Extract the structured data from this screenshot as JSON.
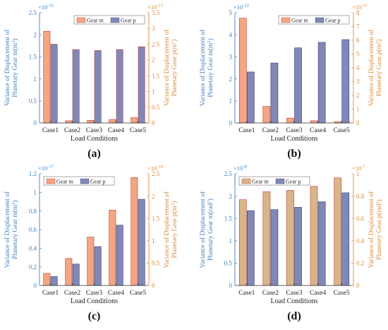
{
  "colors": {
    "gear_m_bar": "#f4a582",
    "gear_m_bar_d": "#d8b58a",
    "gear_p_bar": "#8088b8",
    "left_axis": "#3d7fbf",
    "right_axis": "#d98a3a",
    "outline": "#c0392b",
    "outline_p": "#3a3a6a"
  },
  "chart_data": [
    {
      "panel": "(a)",
      "type": "bar",
      "categories": [
        "Case1",
        "Case2",
        "Case3",
        "Case4",
        "Case5"
      ],
      "xlabel": "Load Conditions",
      "ylabel_left": "Variance of Displacement of Planetary Gear m(m²)",
      "ylabel_right": "Variance of Displacement of Planetary Gear p(m²)",
      "ylabel_left_l1": "Variance of Displacement of",
      "ylabel_left_l2": "Planetary Gear m(m",
      "ylabel_right_l1": "Variance of Displacement of",
      "ylabel_right_l2": "Planetary Gear p(m",
      "left_exp": "×10",
      "left_exp_pow": "-32",
      "right_exp": "×10",
      "right_exp_pow": "-13",
      "ylim_left": [
        0,
        2.5
      ],
      "ylim_right": [
        0,
        3.5
      ],
      "left_ticks": [
        "0",
        "0.5",
        "1",
        "1.5",
        "2",
        "2.5"
      ],
      "right_ticks": [
        "0",
        "0.5",
        "1",
        "1.5",
        "2",
        "2.5",
        "3",
        "3.5"
      ],
      "legend": [
        "Gear m",
        "Gear p"
      ],
      "legend_position": "top-right",
      "series": [
        {
          "name": "Gear m",
          "axis": "left",
          "values": [
            2.08,
            0.05,
            0.06,
            0.08,
            0.12
          ]
        },
        {
          "name": "Gear p",
          "axis": "right",
          "values": [
            2.5,
            2.33,
            2.3,
            2.33,
            2.42
          ]
        }
      ]
    },
    {
      "panel": "(b)",
      "type": "bar",
      "categories": [
        "Case1",
        "Case2",
        "Case3",
        "Case4",
        "Case5"
      ],
      "xlabel": "Load Conditions",
      "ylabel_left": "Variance of Displacement of Planetary Gear m(m²)",
      "ylabel_right": "Variance of Displacement of Planetary Gear p(m²)",
      "ylabel_left_l1": "Variance of Displacement of",
      "ylabel_left_l2": "Planetary Gear m(m",
      "ylabel_right_l1": "Variance of Displacement of",
      "ylabel_right_l2": "Planetary Gear p(m",
      "left_exp": "×10",
      "left_exp_pow": "-22",
      "right_exp": "×10",
      "right_exp_pow": "-11",
      "ylim_left": [
        0,
        5
      ],
      "ylim_right": [
        0,
        8
      ],
      "left_ticks": [
        "0",
        "1",
        "2",
        "3",
        "4",
        "5"
      ],
      "right_ticks": [
        "0",
        "1",
        "2",
        "3",
        "4",
        "5",
        "6",
        "7",
        "8"
      ],
      "legend": [
        "Gear m",
        "Gear p"
      ],
      "legend_position": "top-right",
      "series": [
        {
          "name": "Gear m",
          "axis": "left",
          "values": [
            4.75,
            0.75,
            0.22,
            0.1,
            0.05
          ]
        },
        {
          "name": "Gear p",
          "axis": "right",
          "values": [
            3.7,
            4.35,
            5.45,
            5.85,
            6.05
          ]
        }
      ]
    },
    {
      "panel": "(c)",
      "type": "bar",
      "categories": [
        "Case1",
        "Case2",
        "Case3",
        "Case4",
        "Case5"
      ],
      "xlabel": "Load Conditions",
      "ylabel_left": "Variance of Displacement of Planetary Gear m(m²)",
      "ylabel_right": "Variance of Displacement of Planetary Gear p(m²)",
      "ylabel_left_l1": "Variance of Displacement of",
      "ylabel_left_l2": "Planetary Gear m(m",
      "ylabel_right_l1": "Variance of Displacement of",
      "ylabel_right_l2": "Planetary Gear p(m",
      "left_exp": "×10",
      "left_exp_pow": "-17",
      "right_exp": "×10",
      "right_exp_pow": "-18",
      "ylim_left": [
        0,
        1.2
      ],
      "ylim_right": [
        0,
        2.5
      ],
      "left_ticks": [
        "0",
        "0.2",
        "0.4",
        "0.6",
        "0.8",
        "1",
        "1.2"
      ],
      "right_ticks": [
        "0",
        "0.5",
        "1",
        "1.5",
        "2",
        "2.5"
      ],
      "legend": [
        "Gear m",
        "Gear p"
      ],
      "legend_position": "top-left",
      "series": [
        {
          "name": "Gear m",
          "axis": "left",
          "values": [
            0.13,
            0.29,
            0.52,
            0.81,
            1.16
          ]
        },
        {
          "name": "Gear p",
          "axis": "right",
          "values": [
            0.2,
            0.48,
            0.87,
            1.35,
            1.93
          ]
        }
      ]
    },
    {
      "panel": "(d)",
      "type": "bar",
      "categories": [
        "Case1",
        "Case2",
        "Case3",
        "Case4",
        "Case5"
      ],
      "xlabel": "Load Conditions",
      "ylabel_left": "Variance of Displacement of Planetary Gear m(rad²)",
      "ylabel_right": "Variance of Displacement of Planetary Gear p(rad²)",
      "ylabel_left_l1": "Variance of Displacement of",
      "ylabel_left_l2": "Planetary Gear m(rad",
      "ylabel_right_l1": "Variance of Displacement of",
      "ylabel_right_l2": "Planetary Gear p(rad",
      "left_exp": "×10",
      "left_exp_pow": "-8",
      "right_exp": "×10",
      "right_exp_pow": "-7",
      "ylim_left": [
        0,
        2.5
      ],
      "ylim_right": [
        0,
        1
      ],
      "left_ticks": [
        "0",
        "0.5",
        "1",
        "1.5",
        "2",
        "2.5"
      ],
      "right_ticks": [
        "0",
        "0.2",
        "0.4",
        "0.6",
        "0.8",
        "1"
      ],
      "legend": [
        "Gear m",
        "Gear p"
      ],
      "legend_position": "top-left",
      "series": [
        {
          "name": "Gear m",
          "axis": "left",
          "values": [
            1.92,
            2.1,
            2.13,
            2.22,
            2.41
          ]
        },
        {
          "name": "Gear p",
          "axis": "right",
          "values": [
            0.67,
            0.68,
            0.7,
            0.75,
            0.83
          ]
        }
      ]
    }
  ]
}
